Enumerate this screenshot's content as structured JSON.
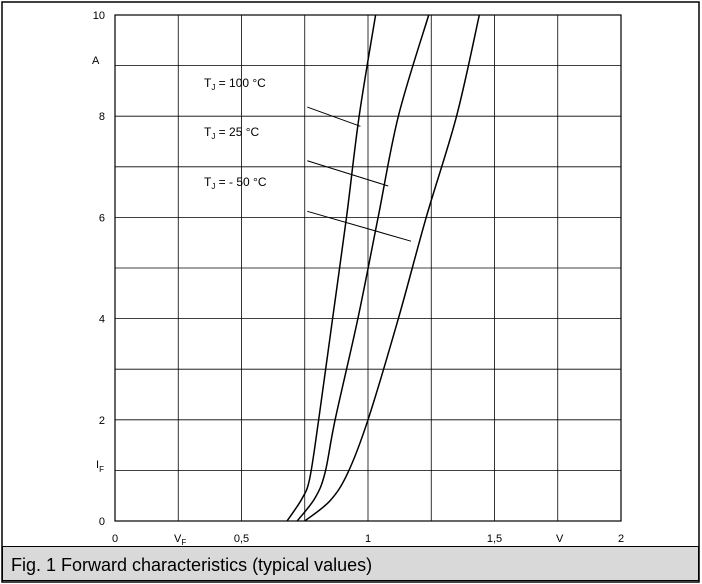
{
  "caption": "Fig. 1 Forward characteristics (typical values)",
  "colors": {
    "background": "#ffffff",
    "frame": "#000000",
    "grid": "#000000",
    "caption_bg": "#d9d9d9"
  },
  "chart_data": {
    "type": "line",
    "title": "",
    "xlabel": "V_F",
    "ylabel": "I_F",
    "x_unit": "V",
    "y_unit": "A",
    "xlim": [
      0,
      2
    ],
    "ylim": [
      0,
      10
    ],
    "grid": true,
    "x_ticks": [
      {
        "value": 0,
        "label": "0"
      },
      {
        "value": 0.5,
        "label": "0,5"
      },
      {
        "value": 1,
        "label": "1"
      },
      {
        "value": 1.5,
        "label": "1,5"
      },
      {
        "value": 2,
        "label": "2"
      }
    ],
    "y_ticks": [
      {
        "value": 0,
        "label": "0"
      },
      {
        "value": 2,
        "label": "2"
      },
      {
        "value": 4,
        "label": "4"
      },
      {
        "value": 6,
        "label": "6"
      },
      {
        "value": 8,
        "label": "8"
      },
      {
        "value": 10,
        "label": "10"
      }
    ],
    "series": [
      {
        "label": {
          "main": "T",
          "sub": "J",
          "rest": " =  100 °C"
        },
        "points": [
          [
            0.68,
            0
          ],
          [
            0.74,
            0.45
          ],
          [
            0.77,
            0.85
          ],
          [
            0.805,
            2
          ],
          [
            0.86,
            4
          ],
          [
            0.915,
            6
          ],
          [
            0.965,
            8
          ],
          [
            1.03,
            10
          ]
        ]
      },
      {
        "label": {
          "main": "T",
          "sub": "J",
          "rest": " =    25 °C"
        },
        "points": [
          [
            0.72,
            0
          ],
          [
            0.79,
            0.45
          ],
          [
            0.83,
            0.95
          ],
          [
            0.87,
            2
          ],
          [
            0.96,
            4
          ],
          [
            1.04,
            6
          ],
          [
            1.12,
            8
          ],
          [
            1.24,
            10
          ]
        ]
      },
      {
        "label": {
          "main": "T",
          "sub": "J",
          "rest": " =  - 50 °C"
        },
        "points": [
          [
            0.75,
            0
          ],
          [
            0.85,
            0.4
          ],
          [
            0.92,
            0.95
          ],
          [
            1.0,
            2
          ],
          [
            1.12,
            4
          ],
          [
            1.23,
            6
          ],
          [
            1.35,
            8
          ],
          [
            1.44,
            10
          ]
        ]
      }
    ],
    "leaders": [
      [
        [
          0.76,
          8.18
        ],
        [
          0.97,
          7.8
        ]
      ],
      [
        [
          0.76,
          7.12
        ],
        [
          1.08,
          6.62
        ]
      ],
      [
        [
          0.76,
          6.12
        ],
        [
          1.17,
          5.53
        ]
      ]
    ]
  }
}
